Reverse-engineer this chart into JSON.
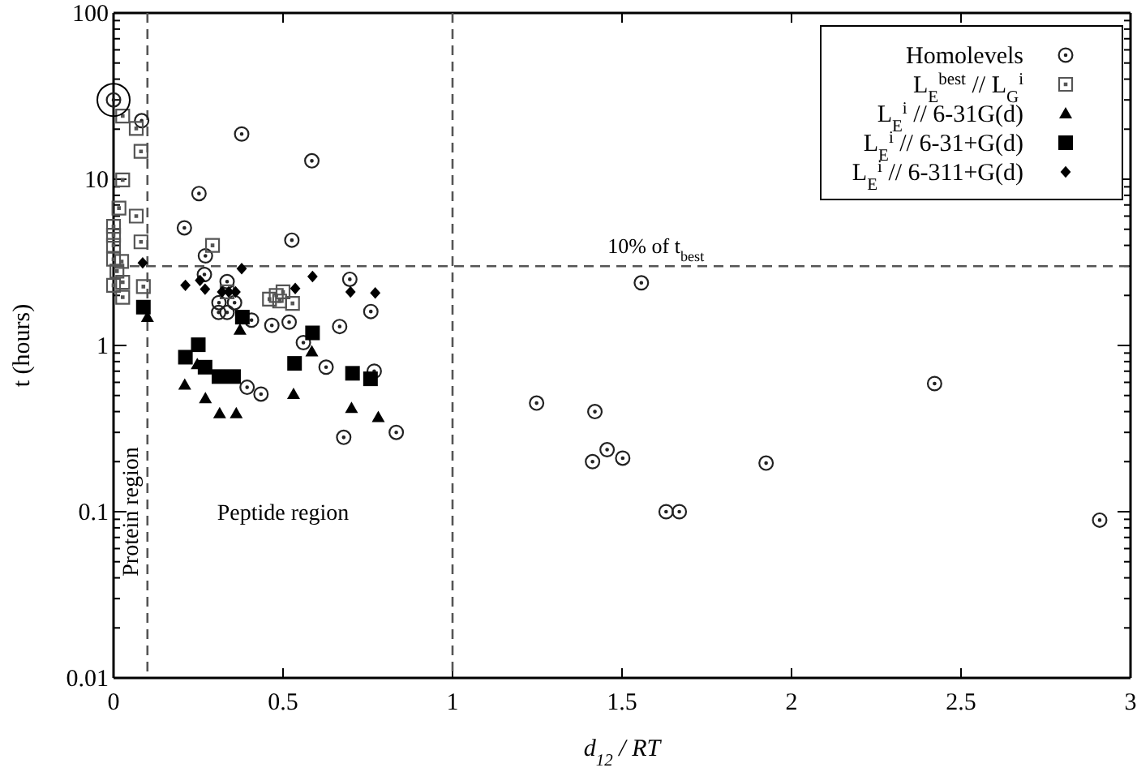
{
  "chart_data": {
    "type": "scatter",
    "xlabel": "d$_{12}$ / RT",
    "ylabel": "t (hours)",
    "log": "y",
    "xlim": [
      0,
      3
    ],
    "ylim": [
      0.01,
      100
    ],
    "xticks": [
      0,
      0.5,
      1,
      1.5,
      2,
      2.5,
      3
    ],
    "yticks": [
      0.01,
      0.1,
      1,
      10,
      100
    ],
    "legend": "top right",
    "ref_lines": [
      {
        "axis": "y",
        "value": 3,
        "label": "10% of t$_{best}$",
        "line_style": "dashed"
      },
      {
        "axis": "x",
        "value": 0.1,
        "label": "Protein region",
        "line_style": "dashed"
      },
      {
        "axis": "x",
        "value": 1,
        "line_style": "dashed"
      }
    ],
    "annotations": [
      "Peptide region"
    ],
    "series": [
      {
        "name": "Homolevels",
        "marker": "circle",
        "color": "#222222",
        "x": [
          0,
          0.083,
          0.378,
          0.585,
          0.252,
          0.209,
          0.526,
          0.271,
          0.268,
          0.335,
          0.311,
          0.357,
          0.31,
          0.335,
          0.407,
          0.467,
          0.518,
          0.56,
          0.394,
          0.435,
          0.697,
          0.759,
          0.667,
          0.627,
          0.769,
          0.834,
          0.679,
          1.557,
          1.248,
          1.42,
          1.456,
          1.413,
          1.502,
          1.925,
          1.63,
          1.669,
          2.422,
          2.909
        ],
        "values": [
          30,
          22.5,
          18.7,
          12.9,
          8.2,
          5.1,
          4.3,
          3.46,
          2.67,
          2.42,
          1.81,
          1.81,
          1.58,
          1.58,
          1.42,
          1.32,
          1.38,
          1.04,
          0.56,
          0.51,
          2.5,
          1.6,
          1.3,
          0.74,
          0.7,
          0.3,
          0.28,
          2.38,
          0.45,
          0.4,
          0.236,
          0.2,
          0.21,
          0.196,
          0.1,
          0.1,
          0.59,
          0.089
        ]
      },
      {
        "name": "L$_{E}$$^{best}$ // L$_{G}$$^{i}$",
        "marker": "square",
        "color": "#555555",
        "x": [
          0.027,
          0.067,
          0.081,
          0.027,
          0.016,
          0.067,
          0,
          0,
          0,
          0,
          0.01,
          0,
          0.024,
          0.027,
          0.027,
          0.081,
          0.088,
          0.292,
          0.46,
          0.48,
          0.49,
          0.5,
          0.528,
          0.335
        ],
        "values": [
          24,
          20.2,
          14.7,
          9.9,
          6.7,
          6,
          5.2,
          4.6,
          4,
          3.3,
          2.8,
          2.3,
          3.2,
          2.4,
          1.95,
          4.2,
          2.26,
          4,
          1.9,
          2,
          1.85,
          2.1,
          1.79,
          2.1
        ]
      },
      {
        "name": "L$_{E}$$^{i}$ // 6-31G(d)",
        "marker": "triangle",
        "color": "#000000",
        "x": [
          0.1,
          0.373,
          0.585,
          0.247,
          0.21,
          0.271,
          0.313,
          0.362,
          0.531,
          0.702,
          0.781
        ],
        "values": [
          1.48,
          1.24,
          0.92,
          0.77,
          0.58,
          0.48,
          0.39,
          0.39,
          0.51,
          0.42,
          0.37
        ]
      },
      {
        "name": "L$_{E}$$^{i}$ // 6-31+G(d)",
        "marker": "square",
        "color": "#000000",
        "x": [
          0.088,
          0.38,
          0.25,
          0.212,
          0.27,
          0.311,
          0.354,
          0.534,
          0.587,
          0.705,
          0.758
        ],
        "values": [
          1.7,
          1.48,
          1.01,
          0.85,
          0.74,
          0.65,
          0.65,
          0.78,
          1.19,
          0.68,
          0.63
        ]
      },
      {
        "name": "L$_{E}$$^{i}$ // 6-311+G(d)",
        "marker": "diamond",
        "color": "#000000",
        "x": [
          0.086,
          0.378,
          0.212,
          0.255,
          0.27,
          0.32,
          0.34,
          0.36,
          0.536,
          0.587,
          0.699,
          0.772
        ],
        "values": [
          3.14,
          2.9,
          2.3,
          2.46,
          2.18,
          2.1,
          2.1,
          2.1,
          2.2,
          2.6,
          2.1,
          2.07
        ]
      }
    ]
  }
}
